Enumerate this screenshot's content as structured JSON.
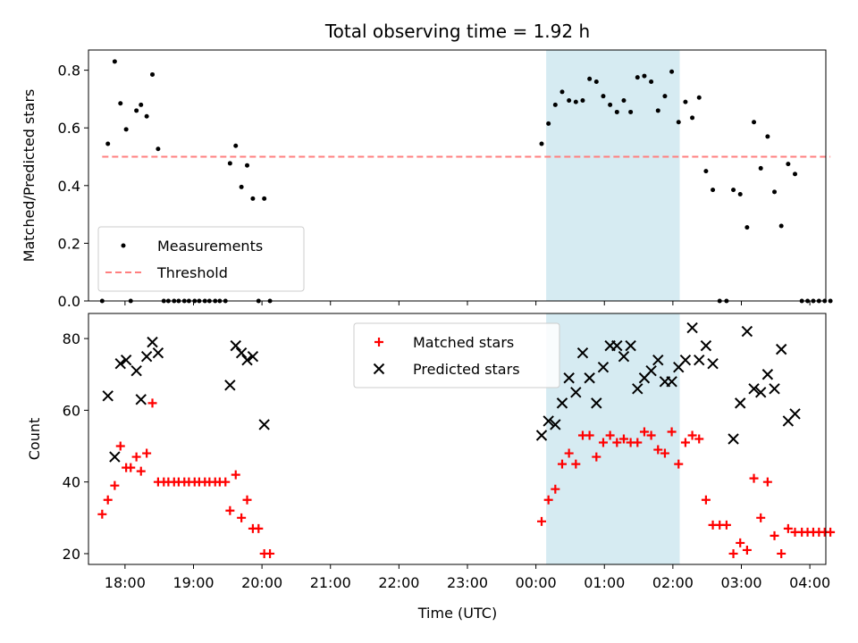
{
  "chart_data": {
    "type": "scatter",
    "title": "Total observing time = 1.92 h",
    "xlabel": "Time (UTC)",
    "x_ticks": [
      "18:00",
      "19:00",
      "20:00",
      "21:00",
      "22:00",
      "23:00",
      "00:00",
      "01:00",
      "02:00",
      "03:00",
      "04:00"
    ],
    "x_range": [
      "17:28",
      "04:14"
    ],
    "highlight_band": {
      "start": "00:09",
      "end": "02:06",
      "color": "#add8e6"
    },
    "panels": [
      {
        "ylabel": "Matched/Predicted stars",
        "ylim": [
          0,
          0.87
        ],
        "y_ticks": [
          "0.0",
          "0.2",
          "0.4",
          "0.6",
          "0.8"
        ],
        "legend_position": "lower-left",
        "series": [
          {
            "name": "Measurements",
            "marker": "dot",
            "color": "#000000",
            "points": [
              [
                "17:40",
                0.0
              ],
              [
                "17:45",
                0.545
              ],
              [
                "17:51",
                0.83
              ],
              [
                "17:56",
                0.685
              ],
              [
                "18:01",
                0.595
              ],
              [
                "18:05",
                0.0
              ],
              [
                "18:10",
                0.66
              ],
              [
                "18:14",
                0.68
              ],
              [
                "18:19",
                0.64
              ],
              [
                "18:24",
                0.785
              ],
              [
                "18:29",
                0.527
              ],
              [
                "18:34",
                0.0
              ],
              [
                "18:38",
                0.0
              ],
              [
                "18:43",
                0.0
              ],
              [
                "18:47",
                0.0
              ],
              [
                "18:52",
                0.0
              ],
              [
                "18:56",
                0.0
              ],
              [
                "19:01",
                0.0
              ],
              [
                "19:05",
                0.0
              ],
              [
                "19:10",
                0.0
              ],
              [
                "19:14",
                0.0
              ],
              [
                "19:19",
                0.0
              ],
              [
                "19:23",
                0.0
              ],
              [
                "19:28",
                0.0
              ],
              [
                "19:32",
                0.477
              ],
              [
                "19:37",
                0.538
              ],
              [
                "19:42",
                0.395
              ],
              [
                "19:47",
                0.47
              ],
              [
                "19:52",
                0.355
              ],
              [
                "19:57",
                0.0
              ],
              [
                "20:02",
                0.355
              ],
              [
                "20:07",
                0.0
              ],
              [
                "00:05",
                0.545
              ],
              [
                "00:11",
                0.615
              ],
              [
                "00:17",
                0.68
              ],
              [
                "00:23",
                0.725
              ],
              [
                "00:29",
                0.695
              ],
              [
                "00:35",
                0.69
              ],
              [
                "00:41",
                0.695
              ],
              [
                "00:47",
                0.77
              ],
              [
                "00:53",
                0.76
              ],
              [
                "00:59",
                0.71
              ],
              [
                "01:05",
                0.68
              ],
              [
                "01:11",
                0.655
              ],
              [
                "01:17",
                0.695
              ],
              [
                "01:23",
                0.655
              ],
              [
                "01:29",
                0.775
              ],
              [
                "01:35",
                0.78
              ],
              [
                "01:41",
                0.76
              ],
              [
                "01:47",
                0.66
              ],
              [
                "01:53",
                0.71
              ],
              [
                "01:59",
                0.795
              ],
              [
                "02:05",
                0.62
              ],
              [
                "02:11",
                0.69
              ],
              [
                "02:17",
                0.635
              ],
              [
                "02:23",
                0.705
              ],
              [
                "02:29",
                0.45
              ],
              [
                "02:35",
                0.385
              ],
              [
                "02:41",
                0.0
              ],
              [
                "02:47",
                0.0
              ],
              [
                "02:53",
                0.385
              ],
              [
                "02:59",
                0.37
              ],
              [
                "03:05",
                0.255
              ],
              [
                "03:11",
                0.62
              ],
              [
                "03:17",
                0.46
              ],
              [
                "03:23",
                0.57
              ],
              [
                "03:29",
                0.378
              ],
              [
                "03:35",
                0.26
              ],
              [
                "03:41",
                0.475
              ],
              [
                "03:47",
                0.44
              ],
              [
                "03:53",
                0.0
              ],
              [
                "03:58",
                0.0
              ],
              [
                "04:03",
                0.0
              ],
              [
                "04:08",
                0.0
              ],
              [
                "04:13",
                0.0
              ],
              [
                "04:18",
                0.0
              ]
            ]
          },
          {
            "name": "Threshold",
            "marker": "dashed-line",
            "color": "#ff7f7f",
            "points": [
              [
                "17:40",
                0.5
              ],
              [
                "04:18",
                0.5
              ]
            ]
          }
        ]
      },
      {
        "ylabel": "Count",
        "ylim": [
          17,
          87
        ],
        "y_ticks": [
          "20",
          "40",
          "60",
          "80"
        ],
        "legend_position": "upper-center",
        "series": [
          {
            "name": "Matched stars",
            "marker": "plus",
            "color": "#ff0000",
            "points": [
              [
                "17:40",
                31
              ],
              [
                "17:45",
                35
              ],
              [
                "17:51",
                39
              ],
              [
                "17:56",
                50
              ],
              [
                "18:01",
                44
              ],
              [
                "18:05",
                44
              ],
              [
                "18:10",
                47
              ],
              [
                "18:14",
                43
              ],
              [
                "18:19",
                48
              ],
              [
                "18:24",
                62
              ],
              [
                "18:29",
                40
              ],
              [
                "18:34",
                40
              ],
              [
                "18:38",
                40
              ],
              [
                "18:43",
                40
              ],
              [
                "18:47",
                40
              ],
              [
                "18:52",
                40
              ],
              [
                "18:56",
                40
              ],
              [
                "19:01",
                40
              ],
              [
                "19:05",
                40
              ],
              [
                "19:10",
                40
              ],
              [
                "19:14",
                40
              ],
              [
                "19:19",
                40
              ],
              [
                "19:23",
                40
              ],
              [
                "19:28",
                40
              ],
              [
                "19:32",
                32
              ],
              [
                "19:37",
                42
              ],
              [
                "19:42",
                30
              ],
              [
                "19:47",
                35
              ],
              [
                "19:52",
                27
              ],
              [
                "19:57",
                27
              ],
              [
                "20:02",
                20
              ],
              [
                "20:07",
                20
              ],
              [
                "00:05",
                29
              ],
              [
                "00:11",
                35
              ],
              [
                "00:17",
                38
              ],
              [
                "00:23",
                45
              ],
              [
                "00:29",
                48
              ],
              [
                "00:35",
                45
              ],
              [
                "00:41",
                53
              ],
              [
                "00:47",
                53
              ],
              [
                "00:53",
                47
              ],
              [
                "00:59",
                51
              ],
              [
                "01:05",
                53
              ],
              [
                "01:11",
                51
              ],
              [
                "01:17",
                52
              ],
              [
                "01:23",
                51
              ],
              [
                "01:29",
                51
              ],
              [
                "01:35",
                54
              ],
              [
                "01:41",
                53
              ],
              [
                "01:47",
                49
              ],
              [
                "01:53",
                48
              ],
              [
                "01:59",
                54
              ],
              [
                "02:05",
                45
              ],
              [
                "02:11",
                51
              ],
              [
                "02:17",
                53
              ],
              [
                "02:23",
                52
              ],
              [
                "02:29",
                35
              ],
              [
                "02:35",
                28
              ],
              [
                "02:41",
                28
              ],
              [
                "02:47",
                28
              ],
              [
                "02:53",
                20
              ],
              [
                "02:59",
                23
              ],
              [
                "03:05",
                21
              ],
              [
                "03:11",
                41
              ],
              [
                "03:17",
                30
              ],
              [
                "03:23",
                40
              ],
              [
                "03:29",
                25
              ],
              [
                "03:35",
                20
              ],
              [
                "03:41",
                27
              ],
              [
                "03:47",
                26
              ],
              [
                "03:53",
                26
              ],
              [
                "03:58",
                26
              ],
              [
                "04:03",
                26
              ],
              [
                "04:08",
                26
              ],
              [
                "04:13",
                26
              ],
              [
                "04:18",
                26
              ]
            ]
          },
          {
            "name": "Predicted stars",
            "marker": "x",
            "color": "#000000",
            "points": [
              [
                "17:45",
                64
              ],
              [
                "17:51",
                47
              ],
              [
                "17:56",
                73
              ],
              [
                "18:01",
                74
              ],
              [
                "18:10",
                71
              ],
              [
                "18:14",
                63
              ],
              [
                "18:19",
                75
              ],
              [
                "18:24",
                79
              ],
              [
                "18:29",
                76
              ],
              [
                "19:32",
                67
              ],
              [
                "19:37",
                78
              ],
              [
                "19:42",
                76
              ],
              [
                "19:47",
                74
              ],
              [
                "19:52",
                75
              ],
              [
                "20:02",
                56
              ],
              [
                "00:05",
                53
              ],
              [
                "00:11",
                57
              ],
              [
                "00:17",
                56
              ],
              [
                "00:23",
                62
              ],
              [
                "00:29",
                69
              ],
              [
                "00:35",
                65
              ],
              [
                "00:41",
                76
              ],
              [
                "00:47",
                69
              ],
              [
                "00:53",
                62
              ],
              [
                "00:59",
                72
              ],
              [
                "01:05",
                78
              ],
              [
                "01:11",
                78
              ],
              [
                "01:17",
                75
              ],
              [
                "01:23",
                78
              ],
              [
                "01:29",
                66
              ],
              [
                "01:35",
                69
              ],
              [
                "01:41",
                71
              ],
              [
                "01:47",
                74
              ],
              [
                "01:53",
                68
              ],
              [
                "01:59",
                68
              ],
              [
                "02:05",
                72
              ],
              [
                "02:11",
                74
              ],
              [
                "02:17",
                83
              ],
              [
                "02:23",
                74
              ],
              [
                "02:29",
                78
              ],
              [
                "02:35",
                73
              ],
              [
                "02:53",
                52
              ],
              [
                "02:59",
                62
              ],
              [
                "03:05",
                82
              ],
              [
                "03:11",
                66
              ],
              [
                "03:17",
                65
              ],
              [
                "03:23",
                70
              ],
              [
                "03:29",
                66
              ],
              [
                "03:35",
                77
              ],
              [
                "03:41",
                57
              ],
              [
                "03:47",
                59
              ]
            ]
          }
        ]
      }
    ]
  }
}
